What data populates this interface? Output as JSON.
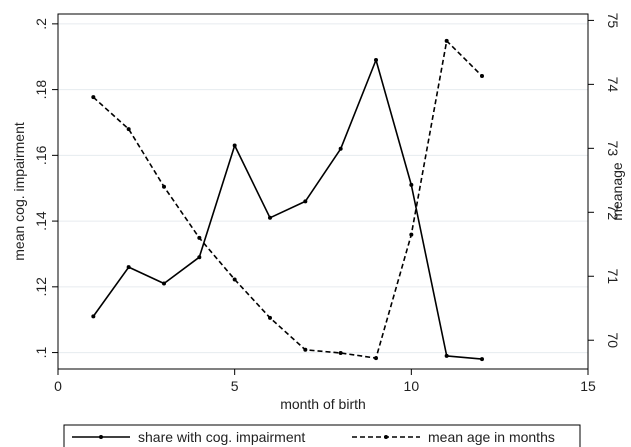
{
  "chart_data": {
    "type": "line",
    "title": "",
    "xlabel": "month of birth",
    "ylabel_left": "mean cog. impairment",
    "ylabel_right": "meanage",
    "xlim": [
      0,
      15
    ],
    "ylim_left": [
      0.095,
      0.203
    ],
    "ylim_right": [
      69.55,
      75.1
    ],
    "x_ticks": [
      0,
      5,
      10,
      15
    ],
    "x_tick_labels": [
      "0",
      "5",
      "10",
      "15"
    ],
    "y_left_ticks": [
      0.1,
      0.12,
      0.14,
      0.16,
      0.18,
      0.2
    ],
    "y_left_tick_labels": [
      ".1",
      ".12",
      ".14",
      ".16",
      ".18",
      ".2"
    ],
    "y_right_ticks": [
      70,
      71,
      72,
      73,
      74,
      75
    ],
    "y_right_tick_labels": [
      "70",
      "71",
      "72",
      "73",
      "74",
      "75"
    ],
    "grid": true,
    "legend_position": "bottom",
    "series": [
      {
        "name": "share with cog. impairment",
        "axis": "left",
        "style": "solid",
        "color": "#000000",
        "x": [
          1,
          2,
          3,
          4,
          5,
          6,
          7,
          8,
          9,
          10,
          11,
          12
        ],
        "values": [
          0.111,
          0.126,
          0.121,
          0.129,
          0.163,
          0.141,
          0.146,
          0.162,
          0.189,
          0.151,
          0.099,
          0.098
        ]
      },
      {
        "name": "mean age in months",
        "axis": "right",
        "style": "dashed",
        "color": "#000000",
        "x": [
          1,
          2,
          3,
          4,
          5,
          6,
          7,
          8,
          9,
          10,
          11,
          12
        ],
        "values": [
          73.8,
          73.3,
          72.4,
          71.6,
          70.95,
          70.35,
          69.85,
          69.8,
          69.72,
          71.65,
          74.68,
          74.13
        ]
      }
    ]
  }
}
